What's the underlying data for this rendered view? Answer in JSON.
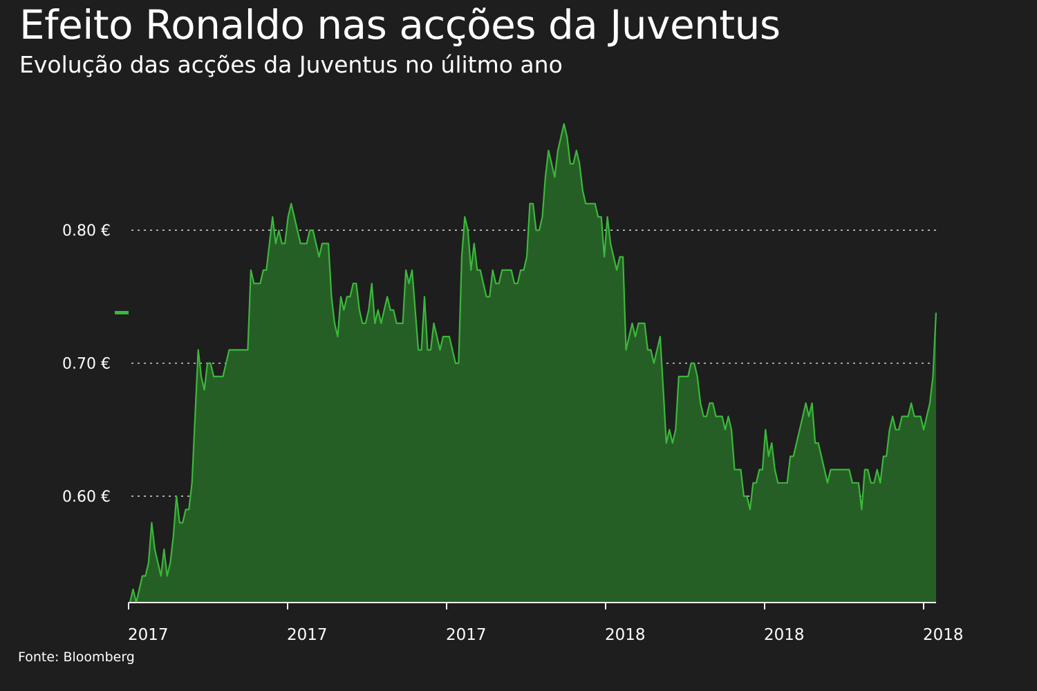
{
  "title": "Efeito Ronaldo nas acções da Juventus",
  "subtitle": "Evolução das acções da Juventus no úlitmo ano",
  "source": "Fonte: Bloomberg",
  "colors": {
    "background": "#1e1e1e",
    "line": "#3bb83b",
    "fill": "#265f26",
    "grid": "#cfcfcf",
    "marker": "#3bb83b"
  },
  "chart_data": {
    "type": "area",
    "title": "Efeito Ronaldo nas acções da Juventus",
    "subtitle": "Evolução das acções da Juventus no úlitmo ano",
    "xlabel": "",
    "ylabel": "",
    "x_ticks": [
      "2017",
      "2017",
      "2017",
      "2018",
      "2018",
      "2018"
    ],
    "y_ticks": [
      {
        "value": 0.6,
        "label": "0.60 €"
      },
      {
        "value": 0.7,
        "label": "0.70 €"
      },
      {
        "value": 0.8,
        "label": "0.80 €"
      }
    ],
    "ylim": [
      0.52,
      0.89
    ],
    "grid": true,
    "last_value_marker": 0.738,
    "series": [
      {
        "values": [
          0.52,
          0.53,
          0.52,
          0.53,
          0.54,
          0.54,
          0.55,
          0.58,
          0.56,
          0.55,
          0.54,
          0.56,
          0.54,
          0.55,
          0.57,
          0.6,
          0.58,
          0.58,
          0.59,
          0.59,
          0.61,
          0.66,
          0.71,
          0.69,
          0.68,
          0.7,
          0.7,
          0.69,
          0.69,
          0.69,
          0.69,
          0.7,
          0.71,
          0.71,
          0.71,
          0.71,
          0.71,
          0.71,
          0.71,
          0.77,
          0.76,
          0.76,
          0.76,
          0.77,
          0.77,
          0.79,
          0.81,
          0.79,
          0.8,
          0.79,
          0.79,
          0.81,
          0.82,
          0.81,
          0.8,
          0.79,
          0.79,
          0.79,
          0.8,
          0.8,
          0.79,
          0.78,
          0.79,
          0.79,
          0.79,
          0.75,
          0.73,
          0.72,
          0.75,
          0.74,
          0.75,
          0.75,
          0.76,
          0.76,
          0.74,
          0.73,
          0.73,
          0.74,
          0.76,
          0.73,
          0.74,
          0.73,
          0.74,
          0.75,
          0.74,
          0.74,
          0.73,
          0.73,
          0.73,
          0.77,
          0.76,
          0.77,
          0.74,
          0.71,
          0.71,
          0.75,
          0.71,
          0.71,
          0.73,
          0.72,
          0.71,
          0.72,
          0.72,
          0.72,
          0.71,
          0.7,
          0.7,
          0.78,
          0.81,
          0.8,
          0.77,
          0.79,
          0.77,
          0.77,
          0.76,
          0.75,
          0.75,
          0.77,
          0.76,
          0.76,
          0.77,
          0.77,
          0.77,
          0.77,
          0.76,
          0.76,
          0.77,
          0.77,
          0.78,
          0.82,
          0.82,
          0.8,
          0.8,
          0.81,
          0.84,
          0.86,
          0.85,
          0.84,
          0.86,
          0.87,
          0.88,
          0.87,
          0.85,
          0.85,
          0.86,
          0.85,
          0.83,
          0.82,
          0.82,
          0.82,
          0.82,
          0.81,
          0.81,
          0.78,
          0.81,
          0.79,
          0.78,
          0.77,
          0.78,
          0.78,
          0.71,
          0.72,
          0.73,
          0.72,
          0.73,
          0.73,
          0.73,
          0.71,
          0.71,
          0.7,
          0.71,
          0.72,
          0.68,
          0.64,
          0.65,
          0.64,
          0.65,
          0.69,
          0.69,
          0.69,
          0.69,
          0.7,
          0.7,
          0.69,
          0.67,
          0.66,
          0.66,
          0.67,
          0.67,
          0.66,
          0.66,
          0.66,
          0.65,
          0.66,
          0.65,
          0.62,
          0.62,
          0.62,
          0.6,
          0.6,
          0.59,
          0.61,
          0.61,
          0.62,
          0.62,
          0.65,
          0.63,
          0.64,
          0.62,
          0.61,
          0.61,
          0.61,
          0.61,
          0.63,
          0.63,
          0.64,
          0.65,
          0.66,
          0.67,
          0.66,
          0.67,
          0.64,
          0.64,
          0.63,
          0.62,
          0.61,
          0.62,
          0.62,
          0.62,
          0.62,
          0.62,
          0.62,
          0.62,
          0.61,
          0.61,
          0.61,
          0.59,
          0.62,
          0.62,
          0.61,
          0.61,
          0.62,
          0.61,
          0.63,
          0.63,
          0.65,
          0.66,
          0.65,
          0.65,
          0.66,
          0.66,
          0.66,
          0.67,
          0.66,
          0.66,
          0.66,
          0.65,
          0.66,
          0.67,
          0.69,
          0.738
        ]
      }
    ]
  }
}
